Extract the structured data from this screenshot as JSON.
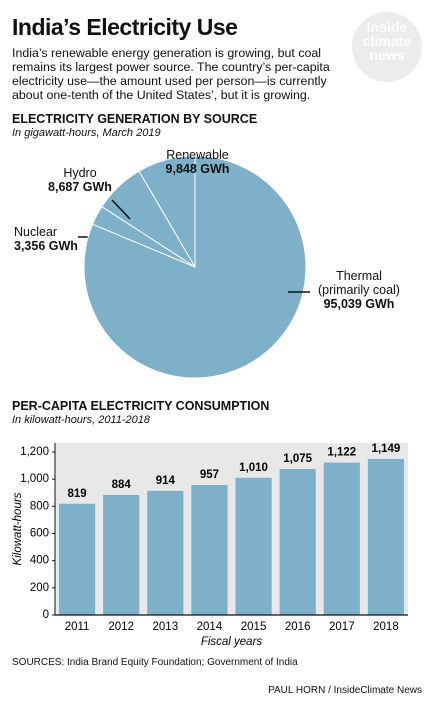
{
  "header": {
    "title": "India’s Electricity Use",
    "description": "India’s renewable energy generation is growing, but coal remains its largest power source. The country’s per-capita electricity use—the amount used per person—is currently about one-tenth of the United States’, but it is growing.",
    "logo": [
      "inside",
      "climate",
      "news"
    ]
  },
  "chart_data": [
    {
      "type": "pie",
      "title": "ELECTRICITY GENERATION BY SOURCE",
      "subtitle": "In gigawatt-hours, March 2019",
      "categories": [
        "Renewable",
        "Hydro",
        "Nuclear",
        "Thermal\n(primarily coal)"
      ],
      "values": [
        9848,
        8687,
        3356,
        95039
      ],
      "value_labels": [
        "9,848 GWh",
        "8,687 GWh",
        "3,356 GWh",
        "95,039 GWh"
      ],
      "color": "#7fb0c9"
    },
    {
      "type": "bar",
      "title": "PER-CAPITA ELECTRICITY CONSUMPTION",
      "subtitle": "In kilowatt-hours, 2011-2018",
      "categories": [
        "2011",
        "2012",
        "2013",
        "2014",
        "2015",
        "2016",
        "2017",
        "2018"
      ],
      "values": [
        819,
        884,
        914,
        957,
        1010,
        1075,
        1122,
        1149
      ],
      "value_labels": [
        "819",
        "884",
        "914",
        "957",
        "1,010",
        "1,075",
        "1,122",
        "1,149"
      ],
      "xlabel": "Fiscal years",
      "ylabel": "Kilowatt-hours",
      "ylim": [
        0,
        1200
      ],
      "yticks": [
        0,
        200,
        400,
        600,
        800,
        {
          "value": 1000,
          "label": "1,000"
        },
        {
          "value": 1200,
          "label": "1,200"
        }
      ],
      "color": "#7fb0c9",
      "grid": false
    }
  ],
  "sources": "SOURCES: India Brand Equity Foundation; Government of India",
  "credit": "PAUL HORN / InsideClimate News"
}
